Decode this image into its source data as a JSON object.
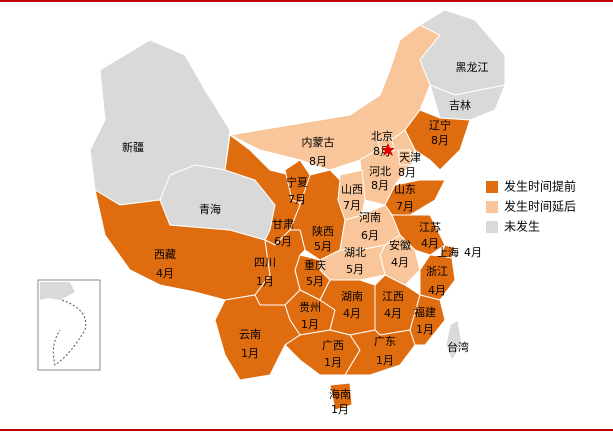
{
  "legend": [
    {
      "label": "发生时间提前",
      "color": "#e06c10"
    },
    {
      "label": "发生时间延后",
      "color": "#f8c69a"
    },
    {
      "label": "未发生",
      "color": "#d9d9d9"
    }
  ],
  "regions": [
    {
      "name": "新疆",
      "color": "#d9d9d9"
    },
    {
      "name": "西藏",
      "month": "4月",
      "color": "#e06c10"
    },
    {
      "name": "青海",
      "color": "#d9d9d9"
    },
    {
      "name": "甘肃",
      "month": "6月",
      "color": "#e06c10"
    },
    {
      "name": "内蒙古",
      "month": "8月",
      "color": "#f8c69a"
    },
    {
      "name": "黑龙江",
      "color": "#d9d9d9"
    },
    {
      "name": "吉林",
      "color": "#d9d9d9"
    },
    {
      "name": "辽宁",
      "month": "8月",
      "color": "#e06c10"
    },
    {
      "name": "河北",
      "month": "8月",
      "color": "#f8c69a"
    },
    {
      "name": "北京",
      "month": "8月",
      "color": "#f8c69a"
    },
    {
      "name": "天津",
      "month": "8月",
      "color": "#f8c69a"
    },
    {
      "name": "山西",
      "month": "7月",
      "color": "#f8c69a"
    },
    {
      "name": "宁夏",
      "month": "7月",
      "color": "#e06c10"
    },
    {
      "name": "陕西",
      "month": "5月",
      "color": "#e06c10"
    },
    {
      "name": "山东",
      "month": "7月",
      "color": "#e06c10"
    },
    {
      "name": "河南",
      "month": "6月",
      "color": "#f8c69a"
    },
    {
      "name": "江苏",
      "month": "4月",
      "color": "#e06c10"
    },
    {
      "name": "安徽",
      "month": "4月",
      "color": "#f8c69a"
    },
    {
      "name": "湖北",
      "month": "5月",
      "color": "#f8c69a"
    },
    {
      "name": "上海",
      "month": "4月",
      "color": "#e06c10"
    },
    {
      "name": "浙江",
      "month": "4月",
      "color": "#e06c10"
    },
    {
      "name": "重庆",
      "month": "5月",
      "color": "#e06c10"
    },
    {
      "name": "四川",
      "month": "1月",
      "color": "#e06c10"
    },
    {
      "name": "贵州",
      "month": "1月",
      "color": "#e06c10"
    },
    {
      "name": "湖南",
      "month": "4月",
      "color": "#e06c10"
    },
    {
      "name": "江西",
      "month": "4月",
      "color": "#e06c10"
    },
    {
      "name": "福建",
      "month": "1月",
      "color": "#e06c10"
    },
    {
      "name": "云南",
      "month": "1月",
      "color": "#e06c10"
    },
    {
      "name": "广西",
      "month": "1月",
      "color": "#e06c10"
    },
    {
      "name": "广东",
      "month": "1月",
      "color": "#e06c10"
    },
    {
      "name": "台湾",
      "color": "#d9d9d9"
    },
    {
      "name": "海南",
      "month": "1月",
      "color": "#e06c10"
    }
  ]
}
